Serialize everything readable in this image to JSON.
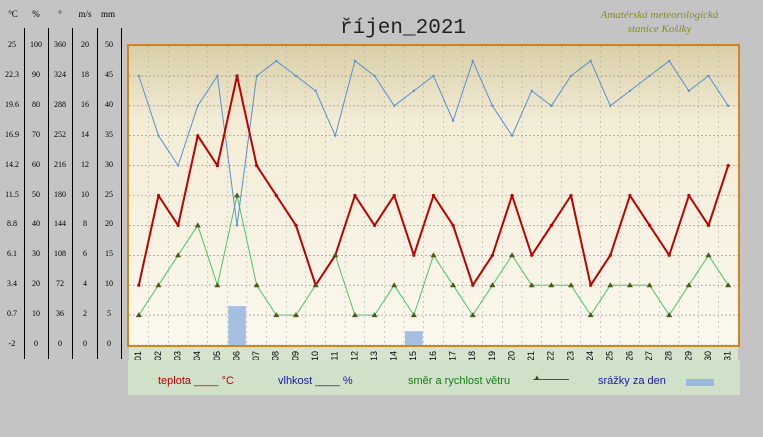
{
  "header": {
    "title": "říjen_2021",
    "station_line1": "Amatérská meteorologická",
    "station_line2": "stanice Košiky"
  },
  "scales": {
    "units": [
      "°C",
      "%",
      "°",
      "m/s",
      "mm"
    ],
    "temp": [
      "25",
      "22.3",
      "19.6",
      "16.9",
      "14.2",
      "11.5",
      "8.8",
      "6.1",
      "3.4",
      "0.7",
      "-2"
    ],
    "humidity": [
      "100",
      "90",
      "80",
      "70",
      "60",
      "50",
      "40",
      "30",
      "20",
      "10",
      "0"
    ],
    "direction": [
      "360",
      "324",
      "288",
      "252",
      "216",
      "180",
      "144",
      "108",
      "72",
      "36",
      "0"
    ],
    "wind": [
      "20",
      "18",
      "16",
      "14",
      "12",
      "10",
      "8",
      "6",
      "4",
      "2",
      "0"
    ],
    "rain": [
      "50",
      "45",
      "40",
      "35",
      "30",
      "25",
      "20",
      "15",
      "10",
      "5",
      "0"
    ]
  },
  "legend": {
    "temp": "teplota ____ °C",
    "humidity": "vlhkost ____ %",
    "wind": "směr a rychlost větru",
    "rain": "srážky za den"
  },
  "colors": {
    "temp": "#c00000",
    "humidity": "#5b8fd0",
    "wind": "#4fc46b",
    "direction": "#4d5a1e",
    "rain": "#9bb8e0",
    "frame": "#d2861f",
    "legend_bg": "#cfe1c8",
    "legend_temp": "#c00000",
    "legend_humidity": "#1a1aa0",
    "legend_wind": "#1a7a1a",
    "legend_rain": "#1a1aa0"
  },
  "chart_data": {
    "type": "line",
    "title": "říjen_2021",
    "x_categories": [
      "01",
      "02",
      "03",
      "04",
      "05",
      "06",
      "07",
      "08",
      "09",
      "10",
      "11",
      "12",
      "13",
      "14",
      "15",
      "16",
      "17",
      "18",
      "19",
      "20",
      "21",
      "22",
      "23",
      "24",
      "25",
      "26",
      "27",
      "28",
      "29",
      "30",
      "31"
    ],
    "ylim_temp": [
      -2,
      25
    ],
    "series": [
      {
        "name": "teplota ____ °C",
        "unit": "°C",
        "values": [
          3.4,
          11.5,
          8.8,
          16.9,
          14.2,
          22.3,
          14.2,
          11.5,
          8.8,
          3.4,
          6.1,
          11.5,
          8.8,
          11.5,
          6.1,
          11.5,
          8.8,
          3.4,
          6.1,
          11.5,
          6.1,
          8.8,
          11.5,
          3.4,
          6.1,
          11.5,
          8.8,
          6.1,
          11.5,
          8.8,
          14.2
        ]
      },
      {
        "name": "vlhkost ____ %",
        "unit": "%",
        "values": [
          90,
          70,
          60,
          80,
          90,
          40,
          90,
          95,
          90,
          85,
          70,
          95,
          90,
          80,
          85,
          90,
          75,
          95,
          80,
          70,
          85,
          80,
          90,
          95,
          80,
          85,
          90,
          95,
          85,
          90,
          80
        ]
      },
      {
        "name": "směr a rychlost větru",
        "unit": "m/s",
        "values": [
          2,
          4,
          6,
          8,
          4,
          10,
          4,
          2,
          2,
          4,
          6,
          2,
          2,
          4,
          2,
          6,
          4,
          2,
          4,
          6,
          4,
          4,
          4,
          2,
          4,
          4,
          4,
          2,
          4,
          6,
          4
        ]
      },
      {
        "name": "srážky za den",
        "unit": "mm",
        "values": [
          0,
          0,
          0,
          0,
          0,
          6.5,
          0,
          0,
          0,
          0,
          0,
          0,
          0,
          0,
          2.3,
          0,
          0,
          0,
          0,
          0,
          0,
          0,
          0,
          0,
          0,
          0,
          0,
          0,
          0,
          0,
          0
        ]
      }
    ]
  }
}
